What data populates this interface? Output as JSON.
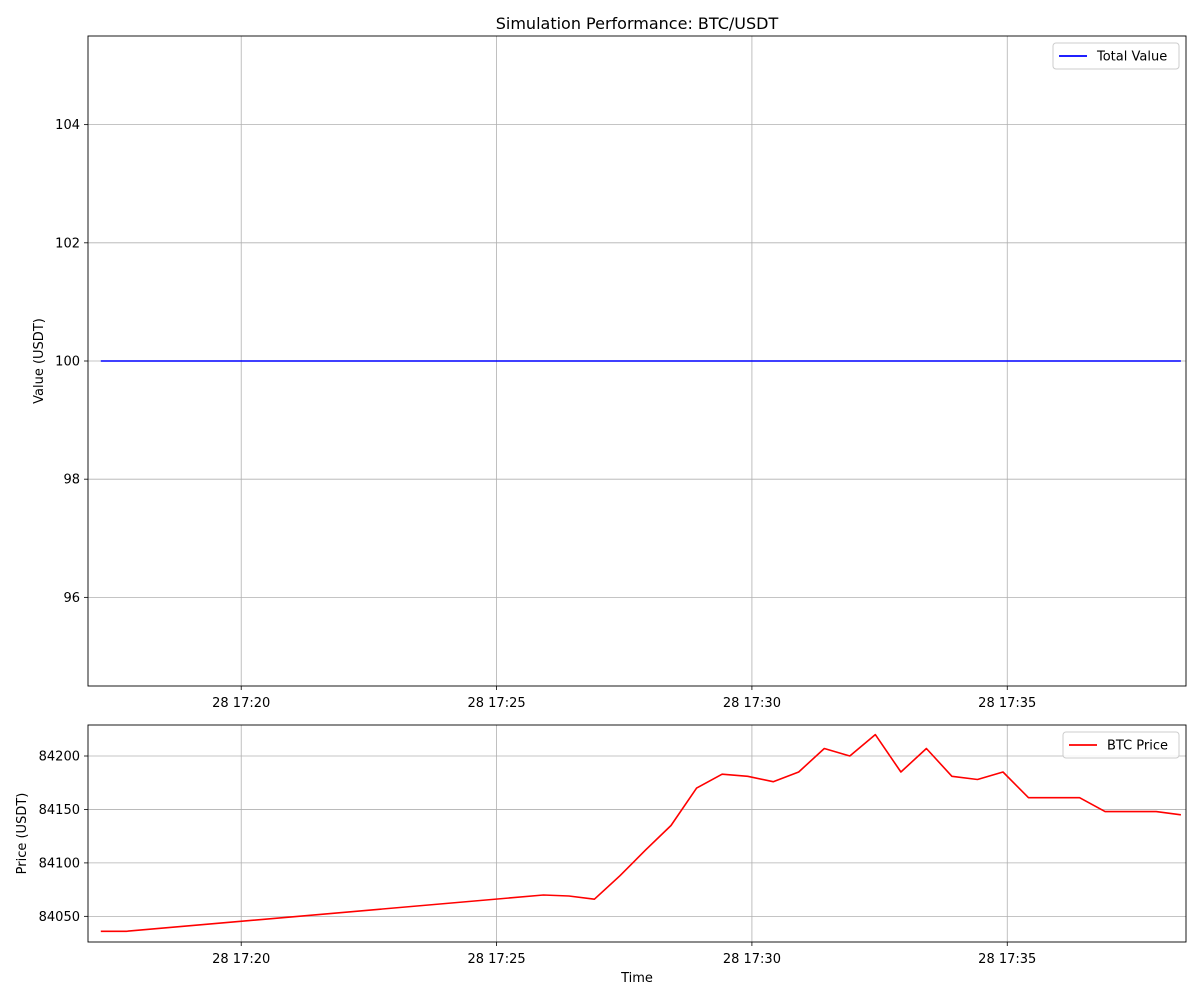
{
  "figure": {
    "title": "Simulation Performance: BTC/USDT",
    "xlabel": "Time"
  },
  "chart_data": [
    {
      "type": "line",
      "title": "Simulation Performance: BTC/USDT",
      "xlabel": "",
      "ylabel": "Value (USDT)",
      "xlim": [
        "17:17:00",
        "17:38:30"
      ],
      "ylim": [
        94.5,
        105.5
      ],
      "xticks": [
        "28 17:20",
        "28 17:25",
        "28 17:30",
        "28 17:35"
      ],
      "yticks": [
        96,
        98,
        100,
        102,
        104
      ],
      "grid": true,
      "legend_position": "upper right",
      "series": [
        {
          "name": "Total Value",
          "color": "#0000ff",
          "x": [
            "17:17:15",
            "17:38:24"
          ],
          "y": [
            100,
            100
          ]
        }
      ]
    },
    {
      "type": "line",
      "title": "",
      "xlabel": "Time",
      "ylabel": "Price (USDT)",
      "xlim": [
        "17:17:00",
        "17:38:30"
      ],
      "ylim": [
        84026,
        84229
      ],
      "xticks": [
        "28 17:20",
        "28 17:25",
        "28 17:30",
        "28 17:35"
      ],
      "yticks": [
        84050,
        84100,
        84150,
        84200
      ],
      "grid": true,
      "legend_position": "upper right",
      "series": [
        {
          "name": "BTC Price",
          "color": "#ff0000",
          "x": [
            "17:17:15",
            "17:17:45",
            "17:25:55",
            "17:26:25",
            "17:26:55",
            "17:27:25",
            "17:27:55",
            "17:28:25",
            "17:28:55",
            "17:29:25",
            "17:29:55",
            "17:30:25",
            "17:30:55",
            "17:31:25",
            "17:31:55",
            "17:32:25",
            "17:32:55",
            "17:33:25",
            "17:33:55",
            "17:34:25",
            "17:34:55",
            "17:35:25",
            "17:35:55",
            "17:36:25",
            "17:36:55",
            "17:37:25",
            "17:37:55",
            "17:38:24"
          ],
          "y": [
            84036,
            84036,
            84070,
            84069,
            84066,
            84088,
            84112,
            84135,
            84170,
            84183,
            84181,
            84176,
            84185,
            84207,
            84200,
            84220,
            84185,
            84207,
            84181,
            84178,
            84185,
            84161,
            84161,
            84161,
            84148,
            84148,
            84148,
            84145
          ]
        }
      ]
    }
  ]
}
